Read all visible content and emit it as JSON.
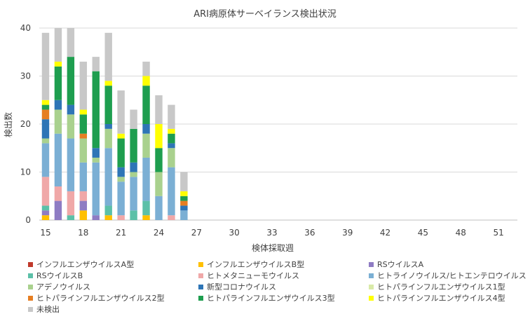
{
  "chart_data": {
    "type": "bar",
    "stacked": true,
    "title": "ARI病原体サーベイランス検出状況",
    "xlabel": "検体採取週",
    "ylabel": "検出数",
    "ylim": [
      0,
      40
    ],
    "yticks": [
      0,
      10,
      20,
      30,
      40
    ],
    "xlim": [
      14.5,
      52.5
    ],
    "xticks": [
      15,
      18,
      21,
      24,
      27,
      30,
      33,
      36,
      39,
      42,
      45,
      48,
      51
    ],
    "grid": true,
    "legend_position": "bottom",
    "weeks": [
      15,
      16,
      17,
      18,
      19,
      20,
      21,
      22,
      23,
      24,
      25,
      26
    ],
    "series": [
      {
        "name": "インフルエンザウイルスA型",
        "color": "#C0392B",
        "values": [
          0,
          0,
          0,
          0,
          0,
          0,
          0,
          0,
          0,
          0,
          0,
          0
        ]
      },
      {
        "name": "インフルエンザウイルスB型",
        "color": "#FFC000",
        "values": [
          1,
          0,
          0,
          2,
          0,
          1,
          0,
          0,
          1,
          0,
          0,
          0
        ]
      },
      {
        "name": "RSウイルスA",
        "color": "#8E7CC3",
        "values": [
          1,
          4,
          0,
          2,
          1,
          0,
          0,
          0,
          0,
          0,
          0,
          0
        ]
      },
      {
        "name": "RSウイルスB",
        "color": "#5CC0A8",
        "values": [
          1,
          0,
          1,
          0,
          0,
          2,
          0,
          2,
          3,
          0,
          0,
          0
        ]
      },
      {
        "name": "ヒトメタニューモウイルス",
        "color": "#F0A8A8",
        "values": [
          6,
          3,
          5,
          2,
          0,
          0,
          1,
          0,
          0,
          0,
          1,
          0
        ]
      },
      {
        "name": "ヒトライノウイルス/ヒトエンテロウイルス",
        "color": "#7BAFD4",
        "values": [
          7,
          11,
          11,
          6,
          11,
          12,
          7,
          7,
          9,
          5,
          10,
          2
        ]
      },
      {
        "name": "アデノウイルス",
        "color": "#A9D18E",
        "values": [
          1,
          5,
          5,
          5,
          1,
          4,
          1,
          1,
          5,
          5,
          4,
          0
        ]
      },
      {
        "name": "新型コロナウイルス",
        "color": "#2E75B6",
        "values": [
          4,
          2,
          2,
          0,
          2,
          1,
          2,
          2,
          2,
          0,
          1,
          1
        ]
      },
      {
        "name": "ヒトパラインフルエンザウイルス1型",
        "color": "#D9EAA8",
        "values": [
          0,
          0,
          0,
          0,
          0,
          0,
          0,
          0,
          0,
          0,
          0,
          0
        ]
      },
      {
        "name": "ヒトパラインフルエンザウイルス2型",
        "color": "#E67E22",
        "values": [
          2,
          0,
          0,
          1,
          0,
          0,
          0,
          0,
          0,
          0,
          0,
          1
        ]
      },
      {
        "name": "ヒトパラインフルエンザウイルス3型",
        "color": "#1E9E4F",
        "values": [
          1,
          7,
          10,
          4,
          16,
          8,
          6,
          7,
          8,
          5,
          2,
          1
        ]
      },
      {
        "name": "ヒトパラインフルエンザウイルス4型",
        "color": "#FFFF00",
        "values": [
          1,
          1,
          0,
          1,
          0,
          1,
          1,
          0,
          2,
          5,
          1,
          1
        ]
      },
      {
        "name": "未検出",
        "color": "#C8C8C8",
        "values": [
          14,
          7,
          6,
          10,
          3,
          10,
          9,
          4,
          3,
          6,
          5,
          4
        ]
      }
    ]
  }
}
